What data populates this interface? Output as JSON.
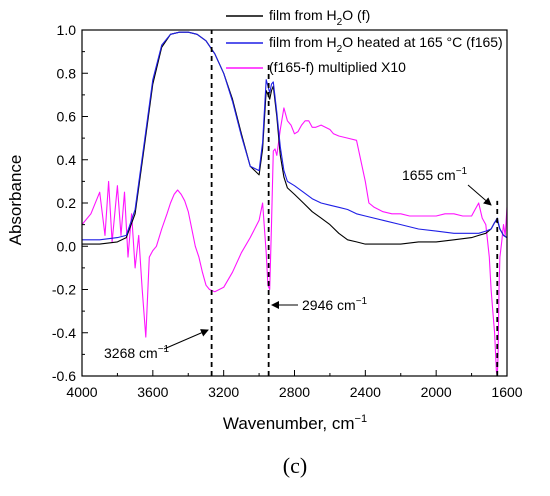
{
  "colors": {
    "film_h2o": "#000000",
    "film_heated": "#1f1fe6",
    "difference": "#ff14ff"
  },
  "chart_data": {
    "type": "line",
    "xlabel": "Wavenumber, cm",
    "xlabel_sup": "−1",
    "ylabel": "Absorbance",
    "xlim": [
      4000,
      1600
    ],
    "x_reversed": true,
    "ylim": [
      -0.6,
      1.0
    ],
    "x_ticks": [
      4000,
      3600,
      3200,
      2800,
      2400,
      2000,
      1600
    ],
    "y_ticks": [
      1.0,
      0.8,
      0.6,
      0.4,
      0.2,
      0.0,
      -0.2,
      -0.4,
      -0.6
    ],
    "x_tick_labels": [
      "4000",
      "3600",
      "3200",
      "2800",
      "2400",
      "2000",
      "1600"
    ],
    "y_tick_labels": [
      "1.0",
      "0.8",
      "0.6",
      "0.4",
      "0.2",
      "0.0",
      "-0.2",
      "-0.4",
      "-0.6"
    ],
    "grid": false,
    "legend_position": "top-right",
    "legend": [
      {
        "series": 0,
        "pre": "film from H",
        "sub": "2",
        "post": "O (f)"
      },
      {
        "series": 1,
        "pre": "film from H",
        "sub": "2",
        "post": "O  heated at 165 °C (f165)"
      },
      {
        "series": 2,
        "pre": "(f165-f) multiplied X10",
        "sub": "",
        "post": ""
      }
    ],
    "series": [
      {
        "name": "film from H2O (f)",
        "color": "#000000",
        "x": [
          4000,
          3900,
          3800,
          3750,
          3700,
          3650,
          3600,
          3550,
          3500,
          3450,
          3400,
          3350,
          3300,
          3250,
          3200,
          3150,
          3100,
          3050,
          3000,
          2980,
          2960,
          2940,
          2930,
          2920,
          2900,
          2880,
          2860,
          2840,
          2800,
          2750,
          2700,
          2650,
          2600,
          2550,
          2500,
          2450,
          2400,
          2300,
          2200,
          2100,
          2000,
          1900,
          1800,
          1760,
          1720,
          1690,
          1670,
          1655,
          1640,
          1620,
          1600
        ],
        "y": [
          0.01,
          0.01,
          0.02,
          0.04,
          0.15,
          0.45,
          0.75,
          0.92,
          0.98,
          0.99,
          0.99,
          0.98,
          0.95,
          0.89,
          0.8,
          0.68,
          0.52,
          0.37,
          0.33,
          0.45,
          0.72,
          0.68,
          0.72,
          0.74,
          0.6,
          0.42,
          0.32,
          0.27,
          0.24,
          0.2,
          0.16,
          0.13,
          0.1,
          0.06,
          0.03,
          0.02,
          0.01,
          0.01,
          0.01,
          0.02,
          0.02,
          0.03,
          0.04,
          0.05,
          0.06,
          0.08,
          0.11,
          0.12,
          0.08,
          0.05,
          0.04
        ]
      },
      {
        "name": "film from H2O heated at 165 °C (f165)",
        "color": "#1f1fe6",
        "x": [
          4000,
          3900,
          3800,
          3750,
          3700,
          3650,
          3600,
          3550,
          3500,
          3450,
          3400,
          3350,
          3300,
          3250,
          3200,
          3150,
          3100,
          3050,
          3000,
          2980,
          2960,
          2940,
          2930,
          2920,
          2900,
          2880,
          2860,
          2840,
          2800,
          2750,
          2700,
          2650,
          2600,
          2550,
          2500,
          2450,
          2400,
          2300,
          2200,
          2100,
          2000,
          1900,
          1800,
          1760,
          1720,
          1690,
          1670,
          1655,
          1640,
          1620,
          1600
        ],
        "y": [
          0.03,
          0.03,
          0.04,
          0.05,
          0.17,
          0.47,
          0.77,
          0.93,
          0.98,
          0.99,
          0.99,
          0.98,
          0.95,
          0.89,
          0.8,
          0.67,
          0.51,
          0.37,
          0.35,
          0.48,
          0.77,
          0.71,
          0.75,
          0.76,
          0.62,
          0.46,
          0.35,
          0.3,
          0.28,
          0.25,
          0.22,
          0.2,
          0.19,
          0.18,
          0.17,
          0.15,
          0.14,
          0.12,
          0.1,
          0.08,
          0.07,
          0.06,
          0.06,
          0.06,
          0.07,
          0.08,
          0.11,
          0.13,
          0.08,
          0.05,
          0.04
        ]
      },
      {
        "name": "(f165-f) multiplied X10",
        "color": "#ff14ff",
        "x": [
          4000,
          3950,
          3900,
          3870,
          3850,
          3830,
          3800,
          3780,
          3760,
          3740,
          3720,
          3700,
          3680,
          3660,
          3640,
          3620,
          3600,
          3580,
          3550,
          3520,
          3500,
          3480,
          3460,
          3440,
          3420,
          3400,
          3380,
          3360,
          3340,
          3320,
          3300,
          3280,
          3250,
          3200,
          3150,
          3100,
          3050,
          3000,
          2980,
          2960,
          2950,
          2940,
          2930,
          2920,
          2910,
          2900,
          2880,
          2860,
          2840,
          2820,
          2800,
          2780,
          2760,
          2740,
          2720,
          2700,
          2680,
          2650,
          2600,
          2580,
          2550,
          2500,
          2450,
          2400,
          2380,
          2350,
          2300,
          2250,
          2200,
          2150,
          2100,
          2000,
          1950,
          1900,
          1850,
          1800,
          1780,
          1760,
          1740,
          1720,
          1700,
          1690,
          1680,
          1670,
          1660,
          1655,
          1650,
          1645,
          1640,
          1630,
          1620,
          1610,
          1600
        ],
        "y": [
          0.1,
          0.15,
          0.25,
          0.05,
          0.3,
          0.02,
          0.28,
          0.05,
          0.25,
          -0.05,
          0.15,
          -0.1,
          0.05,
          -0.2,
          -0.42,
          -0.05,
          -0.02,
          0.0,
          0.08,
          0.15,
          0.2,
          0.24,
          0.26,
          0.24,
          0.21,
          0.16,
          0.08,
          0.0,
          -0.05,
          -0.12,
          -0.18,
          -0.2,
          -0.21,
          -0.19,
          -0.12,
          -0.03,
          0.04,
          0.12,
          0.2,
          -0.03,
          -0.18,
          -0.2,
          0.1,
          0.44,
          0.45,
          0.42,
          0.54,
          0.64,
          0.58,
          0.56,
          0.52,
          0.53,
          0.56,
          0.58,
          0.58,
          0.55,
          0.55,
          0.56,
          0.54,
          0.52,
          0.51,
          0.5,
          0.49,
          0.3,
          0.2,
          0.18,
          0.16,
          0.15,
          0.15,
          0.14,
          0.14,
          0.14,
          0.15,
          0.15,
          0.14,
          0.14,
          0.17,
          0.2,
          0.13,
          0.1,
          -0.05,
          -0.2,
          -0.3,
          -0.4,
          -0.58,
          -0.6,
          -0.5,
          -0.2,
          -0.05,
          0.02,
          0.1,
          0.05,
          0.18
        ]
      }
    ],
    "annotations": [
      {
        "label": "3268 cm",
        "sup": "−1",
        "x": 3268,
        "line_from": -0.6,
        "line_to": 1.0
      },
      {
        "label": "2946 cm",
        "sup": "−1",
        "x": 2946,
        "line_from": -0.6,
        "line_to": 0.85
      },
      {
        "label": "1655 cm",
        "sup": "−1",
        "x": 1655,
        "line_from": -0.6,
        "line_to": 0.21
      }
    ],
    "panel_label": "(c)"
  }
}
